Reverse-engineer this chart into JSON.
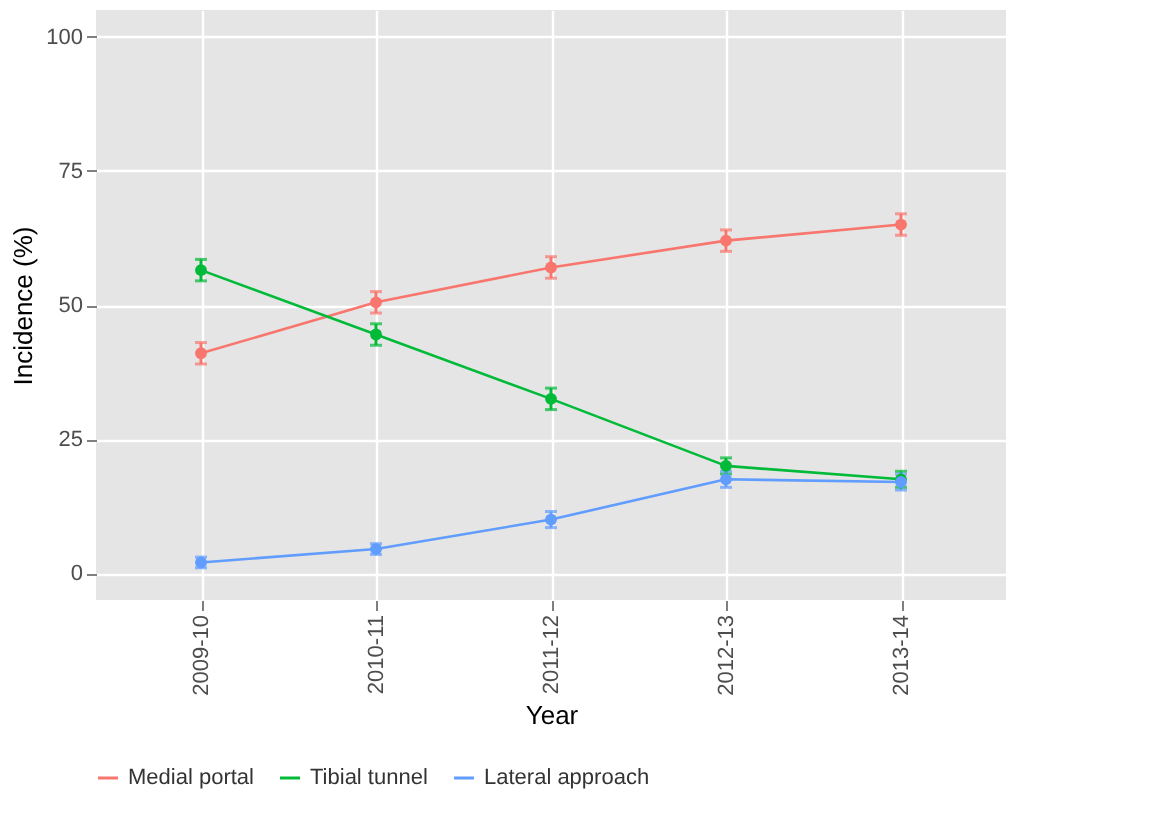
{
  "chart_data": {
    "type": "line",
    "xlabel": "Year",
    "ylabel": "Incidence (%)",
    "categories": [
      "2009-10",
      "2010-11",
      "2011-12",
      "2012-13",
      "2013-14"
    ],
    "series": [
      {
        "name": "Medial portal",
        "color": "#f8766d",
        "values": [
          41,
          50.5,
          57,
          62,
          65
        ],
        "errors": [
          2,
          2,
          2,
          2,
          2
        ]
      },
      {
        "name": "Tibial tunnel",
        "color": "#00ba38",
        "values": [
          56.5,
          44.5,
          32.5,
          20,
          17.5
        ],
        "errors": [
          2,
          2,
          2,
          1.5,
          1.5
        ]
      },
      {
        "name": "Lateral approach",
        "color": "#619cff",
        "values": [
          2,
          4.5,
          10,
          17.5,
          17
        ],
        "errors": [
          1,
          1,
          1.5,
          1.5,
          1.5
        ]
      }
    ],
    "ylim": [
      -5,
      105
    ],
    "yticks": [
      0,
      25,
      50,
      75,
      100
    ],
    "grid": true,
    "legend": "bottom",
    "marker": "circle",
    "line_style": "solid"
  }
}
